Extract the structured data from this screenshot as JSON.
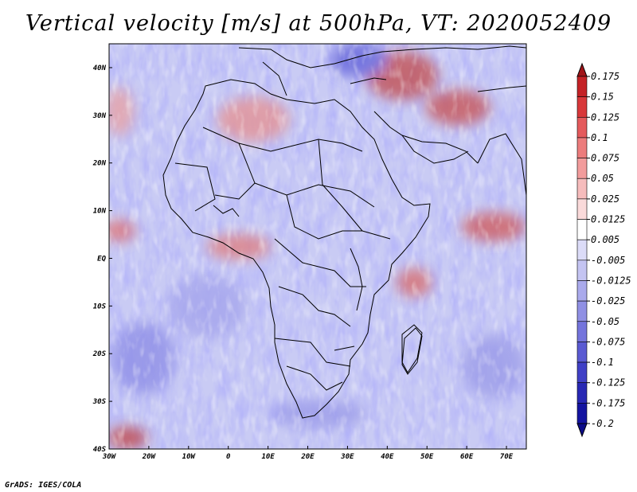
{
  "title": "Vertical velocity [m/s] at 500hPa, VT: 2020052409",
  "credit": "GrADS: IGES/COLA",
  "map": {
    "lat_labels": [
      "40N",
      "30N",
      "20N",
      "10N",
      "EQ",
      "10S",
      "20S",
      "30S",
      "40S"
    ],
    "lon_labels": [
      "30W",
      "20W",
      "10W",
      "0",
      "10E",
      "20E",
      "30E",
      "40E",
      "50E",
      "60E",
      "70E"
    ],
    "lat_range": [
      -40,
      45
    ],
    "lon_range": [
      -30,
      75
    ]
  },
  "colorbar": {
    "labels": [
      "0.175",
      "0.15",
      "0.125",
      "0.1",
      "0.075",
      "0.05",
      "0.025",
      "0.0125",
      "0.005",
      "-0.005",
      "-0.0125",
      "-0.025",
      "-0.05",
      "-0.075",
      "-0.1",
      "-0.125",
      "-0.175",
      "-0.2"
    ],
    "colors": [
      "#a01418",
      "#c42226",
      "#d8383a",
      "#e45a5c",
      "#ec7c7c",
      "#f29c9c",
      "#f6bcbc",
      "#fadada",
      "#ffffff",
      "#dcdcf8",
      "#c4c4f2",
      "#aaaaec",
      "#9090e4",
      "#7474dc",
      "#5a5ad2",
      "#4040c6",
      "#2828b4",
      "#1414a0",
      "#0c0c88"
    ]
  }
}
